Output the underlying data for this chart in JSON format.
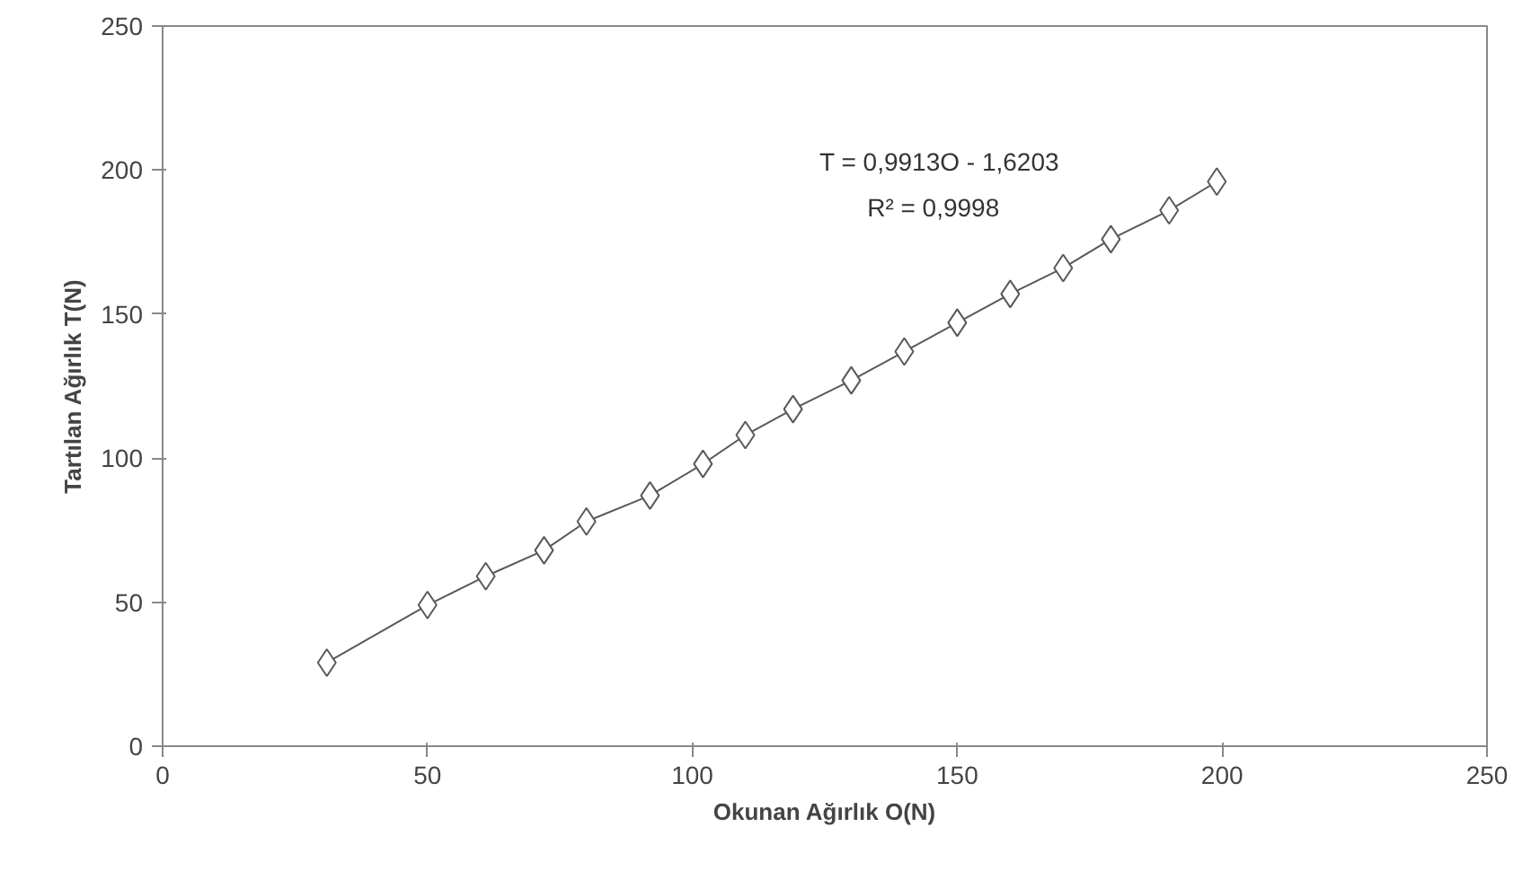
{
  "chart_data": {
    "type": "line",
    "xlabel": "Okunan Ağırlık O(N)",
    "ylabel": "Tartılan Ağırlık T(N)",
    "x": [
      31,
      50,
      61,
      72,
      80,
      92,
      102,
      110,
      119,
      130,
      140,
      150,
      160,
      170,
      179,
      190,
      199
    ],
    "series": [
      {
        "color": "#595959",
        "values": [
          29,
          49,
          59,
          68,
          78,
          87,
          98,
          108,
          117,
          127,
          137,
          147,
          157,
          166,
          176,
          186,
          196
        ]
      }
    ],
    "xlim": [
      0,
      250
    ],
    "ylim": [
      0,
      250
    ],
    "xticks": [
      0,
      50,
      100,
      150,
      200,
      250
    ],
    "yticks": [
      0,
      50,
      100,
      150,
      200,
      250
    ],
    "marker": "diamond",
    "line_style": "solid",
    "grid": false,
    "annotations": [
      "T = 0,9913O - 1,6203",
      "R² = 0,9998"
    ]
  }
}
